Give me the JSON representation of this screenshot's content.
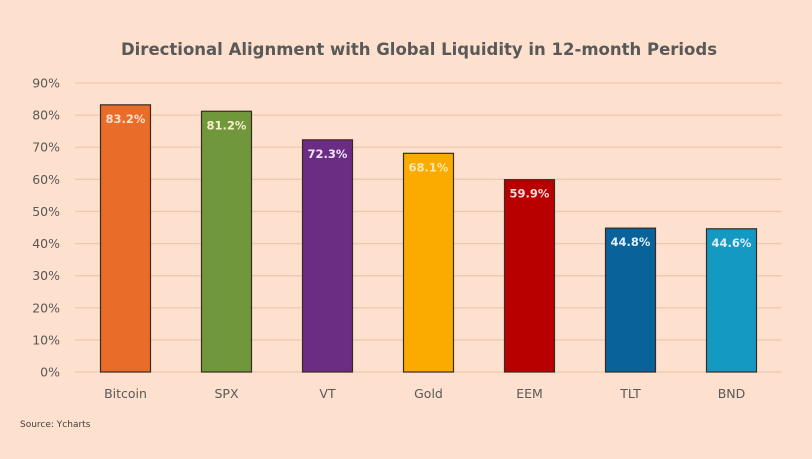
{
  "chart_data": {
    "type": "bar",
    "title": "Directional Alignment with Global Liquidity in 12-month Periods",
    "xlabel": "",
    "ylabel": "",
    "categories": [
      "Bitcoin",
      "SPX",
      "VT",
      "Gold",
      "EEM",
      "TLT",
      "BND"
    ],
    "values": [
      83.2,
      81.2,
      72.3,
      68.1,
      59.9,
      44.8,
      44.6
    ],
    "data_labels": [
      "83.2%",
      "81.2%",
      "72.3%",
      "68.1%",
      "59.9%",
      "44.8%",
      "44.6%"
    ],
    "bar_colors": [
      "#e96c28",
      "#70973b",
      "#6b2c83",
      "#fbab00",
      "#b80000",
      "#08639b",
      "#1499c3"
    ],
    "label_colors": [
      "#fde0cd",
      "#f5efc8",
      "#efe4f3",
      "#fde6b0",
      "#f8dcdc",
      "#e0ecf5",
      "#e0eef3"
    ],
    "ylim": [
      0,
      90
    ],
    "yticks": [
      0,
      10,
      20,
      30,
      40,
      50,
      60,
      70,
      80,
      90
    ],
    "ytick_labels": [
      "0%",
      "10%",
      "20%",
      "30%",
      "40%",
      "50%",
      "60%",
      "70%",
      "80%",
      "90%"
    ],
    "grid": true,
    "legend": "none",
    "background": "#fde0cd"
  },
  "footer": {
    "source": "Source: Ycharts"
  }
}
